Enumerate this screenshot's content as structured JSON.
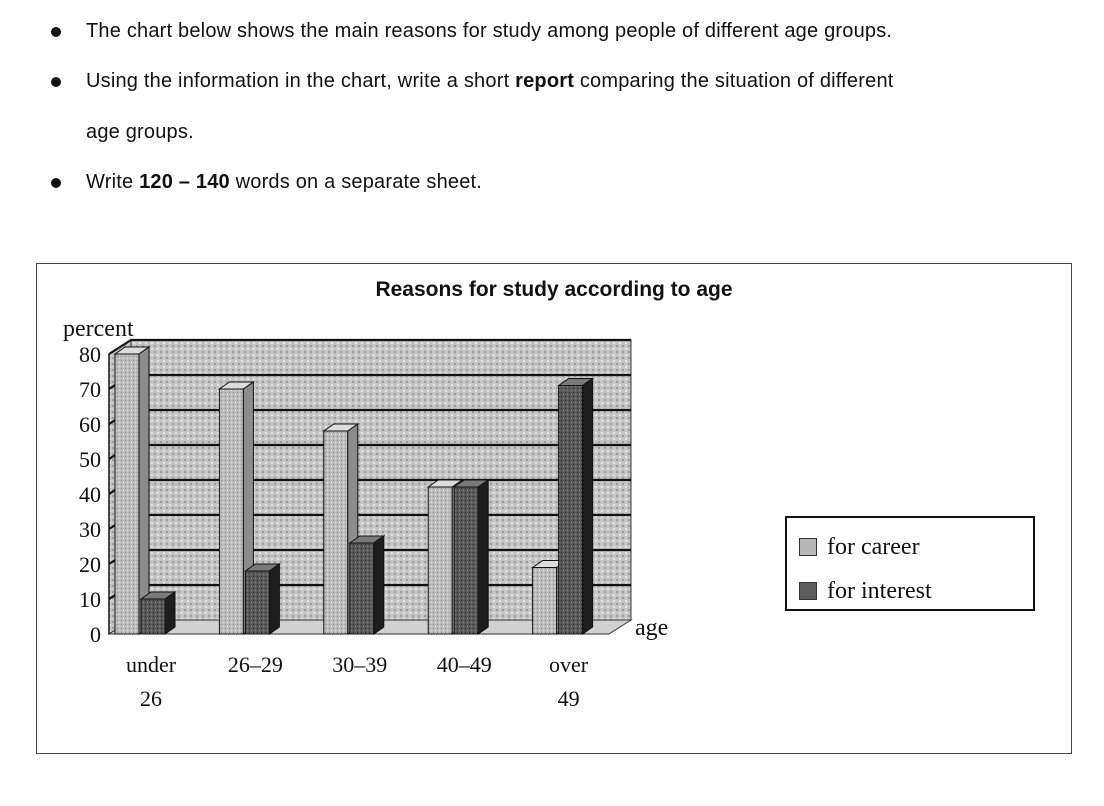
{
  "instructions": [
    {
      "pre": "The chart below shows the main reasons for study among people of different age groups.",
      "bold": "",
      "post": "",
      "cont": ""
    },
    {
      "pre": "Using the information in the chart, write a short ",
      "bold": "report",
      "post": " comparing the situation of different",
      "cont": "age groups."
    },
    {
      "pre": "Write ",
      "bold": "120 – 140",
      "post": " words on a separate sheet.",
      "cont": ""
    }
  ],
  "chart_data": {
    "type": "bar",
    "title": "Reasons for study according to age",
    "ylabel": "percent",
    "xlabel": "age",
    "ylim": [
      0,
      80
    ],
    "yticks": [
      "0",
      "10",
      "20",
      "30",
      "40",
      "50",
      "60",
      "70",
      "80"
    ],
    "categories": [
      [
        "under",
        "26"
      ],
      [
        "26–29"
      ],
      [
        "30–39"
      ],
      [
        "40–49"
      ],
      [
        "over",
        "49"
      ]
    ],
    "series": [
      {
        "name": "for career",
        "values": [
          80,
          70,
          58,
          42,
          19
        ],
        "color": "#b9b9b9"
      },
      {
        "name": "for interest",
        "values": [
          10,
          18,
          26,
          42,
          71
        ],
        "color": "#5d5d5d"
      }
    ],
    "grid": true,
    "legend": "right"
  }
}
